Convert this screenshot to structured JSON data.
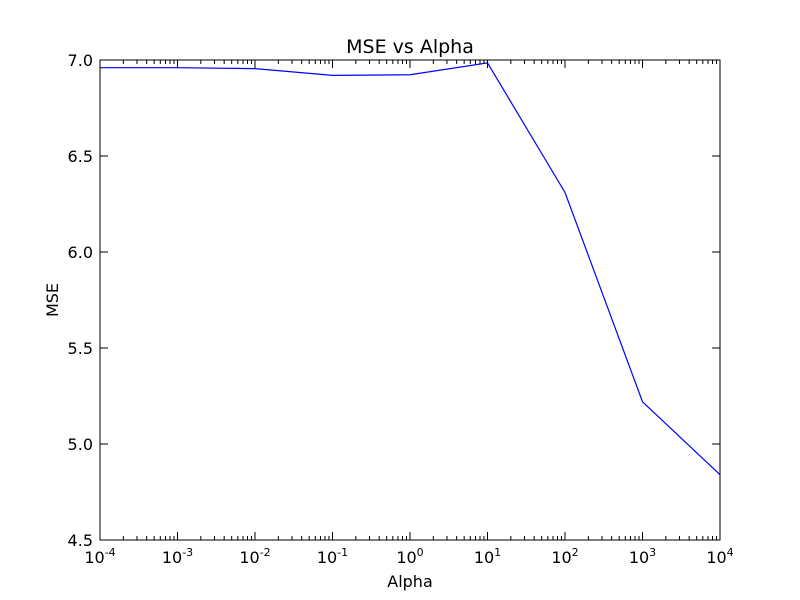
{
  "chart_data": {
    "type": "line",
    "title": "MSE vs Alpha",
    "xlabel": "Alpha",
    "ylabel": "MSE",
    "xscale": "log",
    "xlim": [
      0.0001,
      10000
    ],
    "ylim": [
      4.5,
      7.0
    ],
    "grid": false,
    "legend": "none",
    "x_ticks": [
      {
        "value": 0.0001,
        "base": "10",
        "exp": "-4"
      },
      {
        "value": 0.001,
        "base": "10",
        "exp": "-3"
      },
      {
        "value": 0.01,
        "base": "10",
        "exp": "-2"
      },
      {
        "value": 0.1,
        "base": "10",
        "exp": "-1"
      },
      {
        "value": 1,
        "base": "10",
        "exp": "0"
      },
      {
        "value": 10,
        "base": "10",
        "exp": "1"
      },
      {
        "value": 100,
        "base": "10",
        "exp": "2"
      },
      {
        "value": 1000,
        "base": "10",
        "exp": "3"
      },
      {
        "value": 10000,
        "base": "10",
        "exp": "4"
      }
    ],
    "y_ticks": [
      {
        "value": 4.5,
        "label": "4.5"
      },
      {
        "value": 5.0,
        "label": "5.0"
      },
      {
        "value": 5.5,
        "label": "5.5"
      },
      {
        "value": 6.0,
        "label": "6.0"
      },
      {
        "value": 6.5,
        "label": "6.5"
      },
      {
        "value": 7.0,
        "label": "7.0"
      }
    ],
    "series": [
      {
        "color": "#0000ff",
        "x": [
          0.0001,
          0.001,
          0.01,
          0.1,
          1,
          10,
          100,
          1000,
          10000
        ],
        "y": [
          6.96,
          6.96,
          6.955,
          6.92,
          6.923,
          6.985,
          6.31,
          5.22,
          4.84
        ]
      }
    ]
  }
}
